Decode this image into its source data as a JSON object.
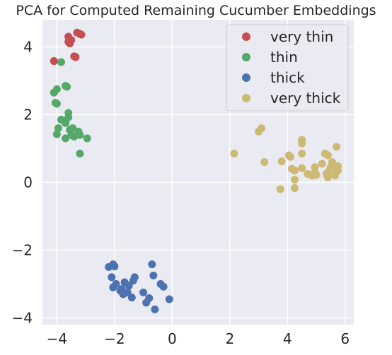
{
  "chart_data": {
    "type": "scatter",
    "title": "PCA for Computed Remaining Cucumber Embeddings",
    "xlabel": "",
    "ylabel": "",
    "xlim": [
      -4.5,
      6.3
    ],
    "ylim": [
      -4.2,
      4.8
    ],
    "xticks": [
      -4,
      -2,
      0,
      2,
      4,
      6
    ],
    "yticks": [
      -4,
      -2,
      0,
      2,
      4
    ],
    "xtick_labels": [
      "−4",
      "−2",
      "0",
      "2",
      "4",
      "6"
    ],
    "ytick_labels": [
      "−4",
      "−2",
      "0",
      "2",
      "4"
    ],
    "grid": true,
    "legend_position": "top-right",
    "series": [
      {
        "name": "very thin",
        "color": "#c44e52",
        "points": [
          [
            -4.1,
            3.58
          ],
          [
            -3.6,
            4.3
          ],
          [
            -3.55,
            4.1
          ],
          [
            -3.5,
            4.2
          ],
          [
            -3.6,
            4.15
          ],
          [
            -3.3,
            4.42
          ],
          [
            -3.2,
            4.38
          ],
          [
            -3.15,
            4.36
          ],
          [
            -3.4,
            3.72
          ],
          [
            -3.35,
            3.7
          ]
        ]
      },
      {
        "name": "thin",
        "color": "#55a868",
        "points": [
          [
            -3.85,
            3.55
          ],
          [
            -4.0,
            2.75
          ],
          [
            -4.1,
            2.65
          ],
          [
            -3.7,
            2.85
          ],
          [
            -3.65,
            2.82
          ],
          [
            -4.05,
            2.35
          ],
          [
            -4.0,
            2.32
          ],
          [
            -3.6,
            2.05
          ],
          [
            -3.6,
            1.92
          ],
          [
            -3.85,
            1.85
          ],
          [
            -3.7,
            1.75
          ],
          [
            -3.55,
            1.55
          ],
          [
            -3.45,
            1.6
          ],
          [
            -3.25,
            1.5
          ],
          [
            -3.95,
            1.6
          ],
          [
            -4.0,
            1.42
          ],
          [
            -3.5,
            1.4
          ],
          [
            -3.4,
            1.35
          ],
          [
            -3.2,
            1.4
          ],
          [
            -3.7,
            1.3
          ],
          [
            -2.95,
            1.3
          ],
          [
            -3.2,
            0.85
          ]
        ]
      },
      {
        "name": "thick",
        "color": "#4c72b0",
        "points": [
          [
            -2.2,
            -2.5
          ],
          [
            -2.05,
            -2.42
          ],
          [
            -2.0,
            -2.48
          ],
          [
            -2.1,
            -2.8
          ],
          [
            -2.05,
            -3.1
          ],
          [
            -1.95,
            -3.0
          ],
          [
            -1.8,
            -3.2
          ],
          [
            -1.7,
            -3.3
          ],
          [
            -1.65,
            -2.95
          ],
          [
            -1.5,
            -3.05
          ],
          [
            -1.55,
            -3.25
          ],
          [
            -1.75,
            -3.15
          ],
          [
            -1.4,
            -3.4
          ],
          [
            -1.3,
            -2.8
          ],
          [
            -1.35,
            -2.9
          ],
          [
            -1.0,
            -3.25
          ],
          [
            -0.9,
            -3.55
          ],
          [
            -0.8,
            -3.42
          ],
          [
            -0.7,
            -2.42
          ],
          [
            -0.65,
            -2.75
          ],
          [
            -0.6,
            -3.75
          ],
          [
            -0.4,
            -3.0
          ],
          [
            -0.3,
            -3.08
          ],
          [
            -0.1,
            -3.45
          ]
        ]
      },
      {
        "name": "very thick",
        "color": "#ccb974",
        "points": [
          [
            2.15,
            0.85
          ],
          [
            3.0,
            1.5
          ],
          [
            3.1,
            1.6
          ],
          [
            3.2,
            0.6
          ],
          [
            3.75,
            -0.2
          ],
          [
            3.8,
            0.62
          ],
          [
            4.05,
            0.8
          ],
          [
            4.1,
            0.75
          ],
          [
            4.15,
            0.4
          ],
          [
            4.25,
            0.35
          ],
          [
            4.25,
            0.08
          ],
          [
            4.25,
            -0.17
          ],
          [
            4.5,
            1.25
          ],
          [
            4.5,
            1.15
          ],
          [
            4.5,
            0.85
          ],
          [
            4.5,
            0.42
          ],
          [
            4.7,
            0.25
          ],
          [
            4.85,
            0.2
          ],
          [
            4.95,
            0.45
          ],
          [
            4.95,
            0.3
          ],
          [
            5.0,
            0.22
          ],
          [
            5.2,
            0.55
          ],
          [
            5.3,
            0.85
          ],
          [
            5.35,
            0.25
          ],
          [
            5.4,
            0.15
          ],
          [
            5.4,
            0.8
          ],
          [
            5.45,
            0.35
          ],
          [
            5.5,
            0.45
          ],
          [
            5.55,
            0.6
          ],
          [
            5.6,
            0.5
          ],
          [
            5.65,
            0.2
          ],
          [
            5.7,
            0.38
          ],
          [
            5.7,
            1.05
          ],
          [
            5.75,
            0.48
          ],
          [
            5.75,
            0.35
          ]
        ]
      }
    ]
  }
}
